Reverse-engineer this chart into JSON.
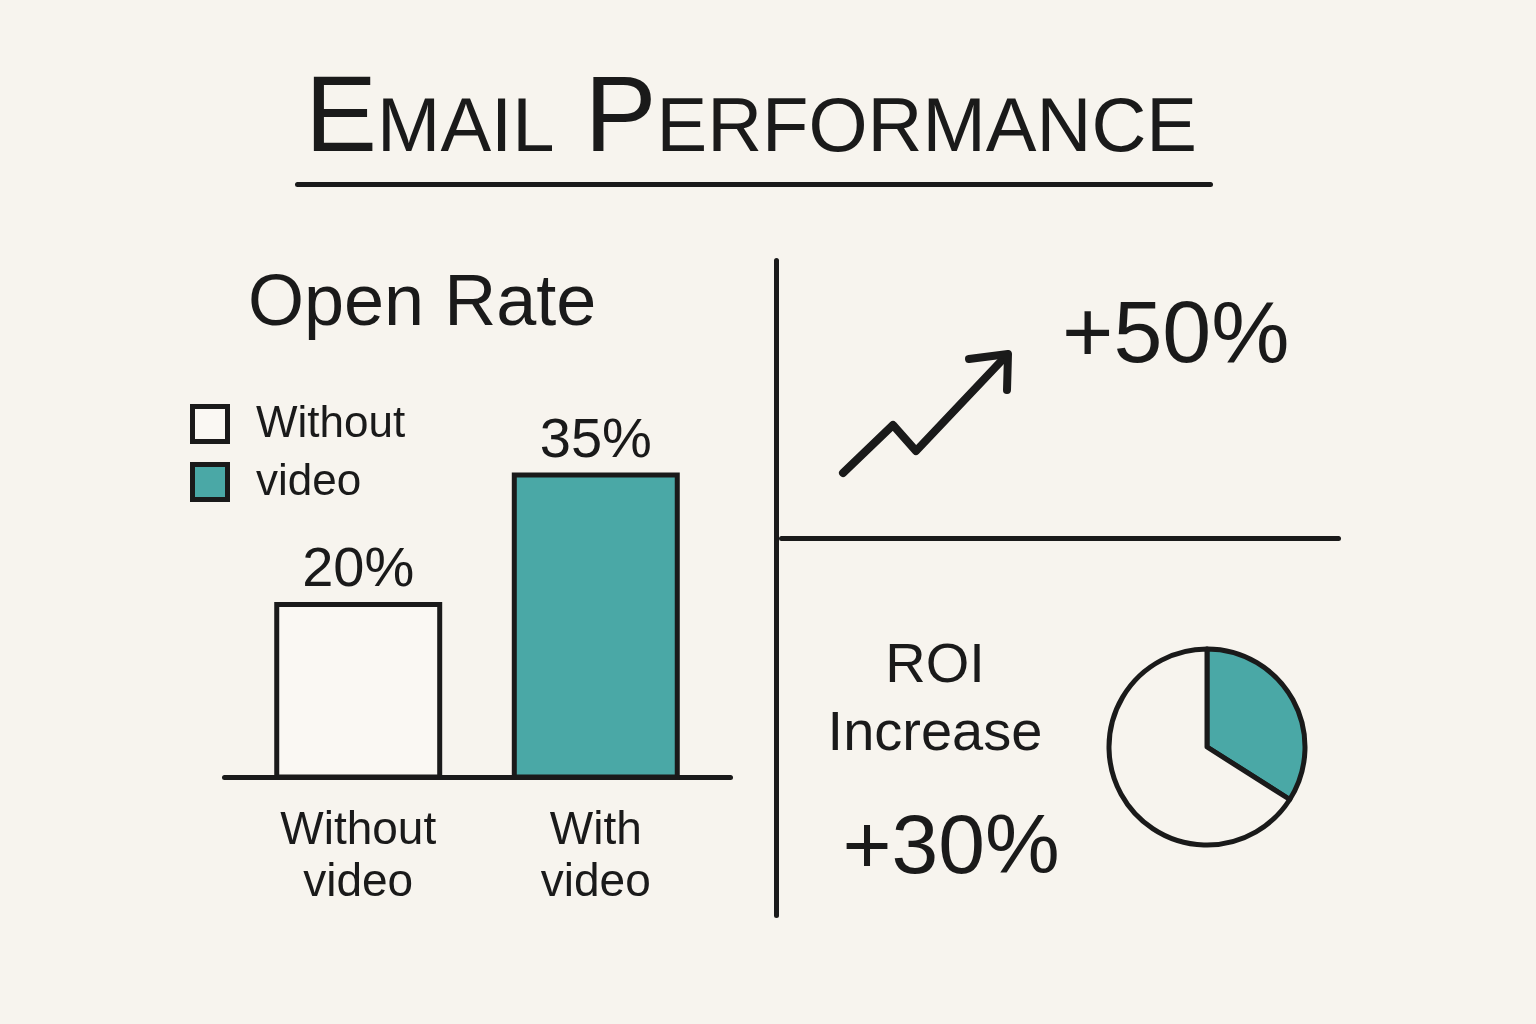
{
  "chart_data": [
    {
      "type": "other",
      "title": "Email Performance"
    },
    {
      "type": "bar",
      "title": "Open Rate",
      "categories": [
        "Without video",
        "With video"
      ],
      "stacked": true,
      "series": [
        {
          "name": "Without",
          "color": "#faf8f3",
          "values": [
            20,
            null
          ],
          "value_labels": [
            "20%",
            null
          ]
        },
        {
          "name": "video",
          "color": "#4aa8a6",
          "values": [
            null,
            35
          ],
          "value_labels": [
            null,
            "35%"
          ]
        }
      ],
      "legend": "top left",
      "tick_labels": "x"
    },
    {
      "type": "other",
      "annotations": [
        "+50%"
      ]
    },
    {
      "type": "pie",
      "title": "ROI Increase",
      "categories": [
        null,
        null
      ],
      "values": [
        34,
        66
      ],
      "colors": [
        "#4aa8a6",
        "#f7f4ee"
      ],
      "annotations": [
        "+30%"
      ]
    }
  ]
}
